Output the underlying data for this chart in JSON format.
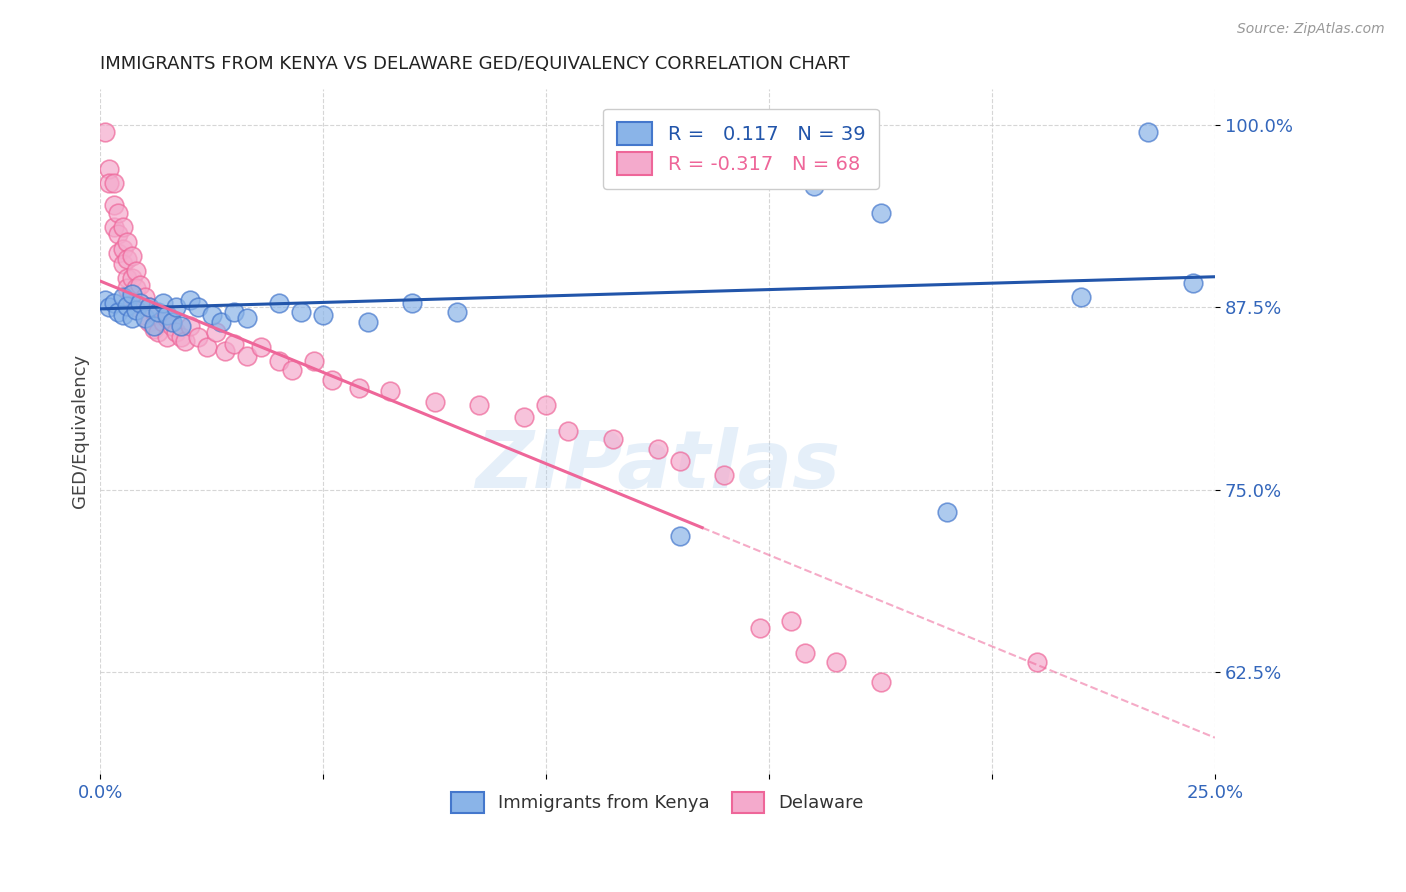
{
  "title": "IMMIGRANTS FROM KENYA VS DELAWARE GED/EQUIVALENCY CORRELATION CHART",
  "source": "Source: ZipAtlas.com",
  "ylabel": "GED/Equivalency",
  "xlim": [
    0.0,
    0.25
  ],
  "ylim": [
    0.555,
    1.025
  ],
  "ytick_positions": [
    0.625,
    0.75,
    0.875,
    1.0
  ],
  "ytick_labels": [
    "62.5%",
    "75.0%",
    "87.5%",
    "100.0%"
  ],
  "legend_blue_r": "0.117",
  "legend_blue_n": "39",
  "legend_pink_r": "-0.317",
  "legend_pink_n": "68",
  "blue_scatter_color": "#8AB4E8",
  "blue_edge_color": "#4477CC",
  "pink_scatter_color": "#F4AACC",
  "pink_edge_color": "#EE6699",
  "blue_line_color": "#2255AA",
  "pink_line_color": "#EE6699",
  "watermark": "ZIPatlas",
  "blue_scatter": [
    [
      0.001,
      0.88
    ],
    [
      0.002,
      0.875
    ],
    [
      0.003,
      0.878
    ],
    [
      0.004,
      0.872
    ],
    [
      0.005,
      0.882
    ],
    [
      0.005,
      0.87
    ],
    [
      0.006,
      0.876
    ],
    [
      0.007,
      0.868
    ],
    [
      0.007,
      0.884
    ],
    [
      0.008,
      0.873
    ],
    [
      0.009,
      0.878
    ],
    [
      0.01,
      0.868
    ],
    [
      0.011,
      0.875
    ],
    [
      0.012,
      0.862
    ],
    [
      0.013,
      0.872
    ],
    [
      0.014,
      0.878
    ],
    [
      0.015,
      0.87
    ],
    [
      0.016,
      0.865
    ],
    [
      0.017,
      0.875
    ],
    [
      0.018,
      0.862
    ],
    [
      0.02,
      0.88
    ],
    [
      0.022,
      0.875
    ],
    [
      0.025,
      0.87
    ],
    [
      0.027,
      0.865
    ],
    [
      0.03,
      0.872
    ],
    [
      0.033,
      0.868
    ],
    [
      0.04,
      0.878
    ],
    [
      0.045,
      0.872
    ],
    [
      0.05,
      0.87
    ],
    [
      0.06,
      0.865
    ],
    [
      0.07,
      0.878
    ],
    [
      0.08,
      0.872
    ],
    [
      0.13,
      0.718
    ],
    [
      0.16,
      0.958
    ],
    [
      0.175,
      0.94
    ],
    [
      0.19,
      0.735
    ],
    [
      0.22,
      0.882
    ],
    [
      0.235,
      0.995
    ],
    [
      0.245,
      0.892
    ]
  ],
  "pink_scatter": [
    [
      0.001,
      0.995
    ],
    [
      0.002,
      0.97
    ],
    [
      0.002,
      0.96
    ],
    [
      0.003,
      0.96
    ],
    [
      0.003,
      0.945
    ],
    [
      0.003,
      0.93
    ],
    [
      0.004,
      0.94
    ],
    [
      0.004,
      0.925
    ],
    [
      0.004,
      0.912
    ],
    [
      0.005,
      0.93
    ],
    [
      0.005,
      0.915
    ],
    [
      0.005,
      0.905
    ],
    [
      0.006,
      0.92
    ],
    [
      0.006,
      0.908
    ],
    [
      0.006,
      0.895
    ],
    [
      0.006,
      0.888
    ],
    [
      0.007,
      0.91
    ],
    [
      0.007,
      0.895
    ],
    [
      0.007,
      0.882
    ],
    [
      0.008,
      0.9
    ],
    [
      0.008,
      0.888
    ],
    [
      0.008,
      0.875
    ],
    [
      0.009,
      0.89
    ],
    [
      0.009,
      0.878
    ],
    [
      0.01,
      0.882
    ],
    [
      0.01,
      0.87
    ],
    [
      0.011,
      0.875
    ],
    [
      0.011,
      0.865
    ],
    [
      0.012,
      0.872
    ],
    [
      0.012,
      0.86
    ],
    [
      0.013,
      0.87
    ],
    [
      0.013,
      0.858
    ],
    [
      0.014,
      0.865
    ],
    [
      0.015,
      0.868
    ],
    [
      0.015,
      0.855
    ],
    [
      0.016,
      0.862
    ],
    [
      0.017,
      0.858
    ],
    [
      0.018,
      0.855
    ],
    [
      0.019,
      0.852
    ],
    [
      0.02,
      0.862
    ],
    [
      0.022,
      0.855
    ],
    [
      0.024,
      0.848
    ],
    [
      0.026,
      0.858
    ],
    [
      0.028,
      0.845
    ],
    [
      0.03,
      0.85
    ],
    [
      0.033,
      0.842
    ],
    [
      0.036,
      0.848
    ],
    [
      0.04,
      0.838
    ],
    [
      0.043,
      0.832
    ],
    [
      0.048,
      0.838
    ],
    [
      0.052,
      0.825
    ],
    [
      0.058,
      0.82
    ],
    [
      0.065,
      0.818
    ],
    [
      0.075,
      0.81
    ],
    [
      0.085,
      0.808
    ],
    [
      0.095,
      0.8
    ],
    [
      0.1,
      0.808
    ],
    [
      0.105,
      0.79
    ],
    [
      0.115,
      0.785
    ],
    [
      0.125,
      0.778
    ],
    [
      0.13,
      0.77
    ],
    [
      0.14,
      0.76
    ],
    [
      0.148,
      0.655
    ],
    [
      0.155,
      0.66
    ],
    [
      0.158,
      0.638
    ],
    [
      0.165,
      0.632
    ],
    [
      0.175,
      0.618
    ],
    [
      0.21,
      0.632
    ]
  ],
  "background_color": "#FFFFFF",
  "grid_color": "#CCCCCC"
}
